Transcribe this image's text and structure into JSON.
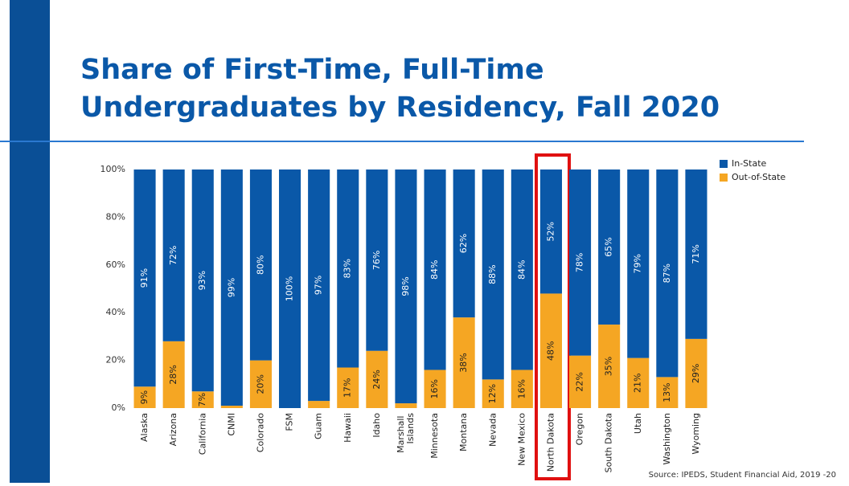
{
  "chart_data": {
    "type": "stacked_bar",
    "title": "Share of First-Time, Full-Time Undergraduates by Residency, Fall 2020",
    "source": "Source: IPEDS, Student Financial Aid, 2019 -20",
    "categories": [
      "Alaska",
      "Arizona",
      "California",
      "CNMI",
      "Colorado",
      "FSM",
      "Guam",
      "Hawaii",
      "Idaho",
      "Marshall Islands",
      "Minnesota",
      "Montana",
      "Nevada",
      "New Mexico",
      "North Dakota",
      "Oregon",
      "South Dakota",
      "Utah",
      "Washington",
      "Wyoming"
    ],
    "series": [
      {
        "name": "Out-of-State",
        "color": "#f5a623",
        "values": [
          9,
          28,
          7,
          1,
          20,
          0,
          3,
          17,
          24,
          2,
          16,
          38,
          12,
          16,
          48,
          22,
          35,
          21,
          13,
          29
        ],
        "value_labels": [
          "9%",
          "28%",
          "7%",
          null,
          "20%",
          null,
          null,
          "17%",
          "24%",
          null,
          "16%",
          "38%",
          "12%",
          "16%",
          "48%",
          "22%",
          "35%",
          "21%",
          "13%",
          "29%"
        ]
      },
      {
        "name": "In-State",
        "color": "#0a58a8",
        "values": [
          91,
          72,
          93,
          99,
          80,
          100,
          97,
          83,
          76,
          98,
          84,
          62,
          88,
          84,
          52,
          78,
          65,
          79,
          87,
          71
        ],
        "value_labels": [
          "91%",
          "72%",
          "93%",
          "99%",
          "80%",
          "100%",
          "97%",
          "83%",
          "76%",
          "98%",
          "84%",
          "62%",
          "88%",
          "84%",
          "52%",
          "78%",
          "65%",
          "79%",
          "87%",
          "71%"
        ]
      }
    ],
    "ylim": [
      0,
      100
    ],
    "yticks": [
      {
        "value": 0,
        "label": "0%"
      },
      {
        "value": 20,
        "label": "20%"
      },
      {
        "value": 40,
        "label": "40%"
      },
      {
        "value": 60,
        "label": "60%"
      },
      {
        "value": 80,
        "label": "80%"
      },
      {
        "value": 100,
        "label": "100%"
      }
    ],
    "legend": "top-right"
  }
}
